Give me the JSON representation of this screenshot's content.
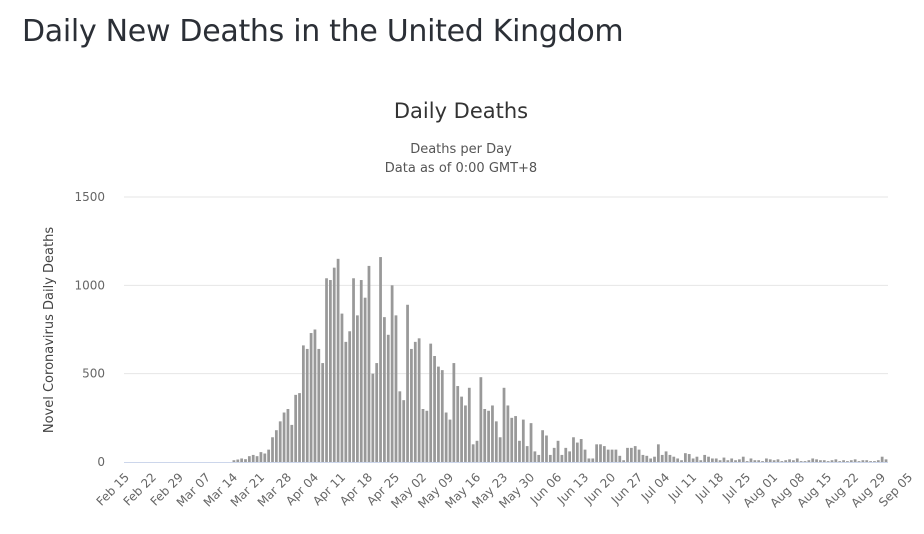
{
  "page": {
    "title": "Daily New Deaths in the United Kingdom"
  },
  "chart_data": {
    "type": "bar",
    "title": "Daily Deaths",
    "subtitle_lines": [
      "Deaths per Day",
      "Data as of 0:00 GMT+8"
    ],
    "xlabel": "",
    "ylabel": "Novel Coronavirus Daily Deaths",
    "ylim": [
      0,
      1500
    ],
    "yticks": [
      0,
      500,
      1000,
      1500
    ],
    "grid": true,
    "bar_color": "#999999",
    "start_date": "Feb 15",
    "xtick_labels": [
      "Feb 15",
      "Feb 22",
      "Feb 29",
      "Mar 07",
      "Mar 14",
      "Mar 21",
      "Mar 28",
      "Apr 04",
      "Apr 11",
      "Apr 18",
      "Apr 25",
      "May 02",
      "May 09",
      "May 16",
      "May 23",
      "May 30",
      "Jun 06",
      "Jun 13",
      "Jun 20",
      "Jun 27",
      "Jul 04",
      "Jul 11",
      "Jul 18",
      "Jul 25",
      "Aug 01",
      "Aug 08",
      "Aug 15",
      "Aug 22",
      "Aug 29",
      "Sep 05"
    ],
    "values": [
      0,
      0,
      0,
      0,
      0,
      0,
      0,
      0,
      0,
      0,
      0,
      0,
      0,
      0,
      0,
      0,
      0,
      0,
      0,
      0,
      0,
      0,
      0,
      0,
      0,
      0,
      0,
      0,
      10,
      14,
      20,
      16,
      33,
      40,
      33,
      56,
      48,
      70,
      140,
      180,
      230,
      280,
      300,
      210,
      380,
      390,
      660,
      640,
      730,
      750,
      640,
      560,
      1040,
      1030,
      1100,
      1150,
      840,
      680,
      740,
      1040,
      830,
      1030,
      930,
      1110,
      500,
      560,
      1160,
      820,
      720,
      1000,
      830,
      400,
      350,
      890,
      640,
      680,
      700,
      300,
      290,
      670,
      600,
      540,
      520,
      280,
      240,
      560,
      430,
      370,
      320,
      420,
      100,
      120,
      480,
      300,
      290,
      320,
      230,
      140,
      420,
      320,
      250,
      260,
      120,
      240,
      90,
      220,
      60,
      40,
      180,
      150,
      40,
      80,
      120,
      40,
      80,
      60,
      140,
      110,
      130,
      70,
      20,
      20,
      100,
      100,
      90,
      70,
      70,
      70,
      35,
      10,
      80,
      80,
      90,
      70,
      40,
      35,
      20,
      30,
      100,
      40,
      60,
      40,
      30,
      20,
      10,
      50,
      45,
      20,
      30,
      10,
      40,
      30,
      20,
      20,
      10,
      25,
      10,
      20,
      10,
      15,
      30,
      5,
      20,
      10,
      10,
      5,
      20,
      15,
      10,
      15,
      5,
      10,
      15,
      10,
      20,
      5,
      5,
      10,
      20,
      15,
      10,
      10,
      5,
      10,
      15,
      5,
      10,
      5,
      10,
      15,
      5,
      10,
      10,
      5,
      5,
      10,
      30,
      15
    ]
  }
}
